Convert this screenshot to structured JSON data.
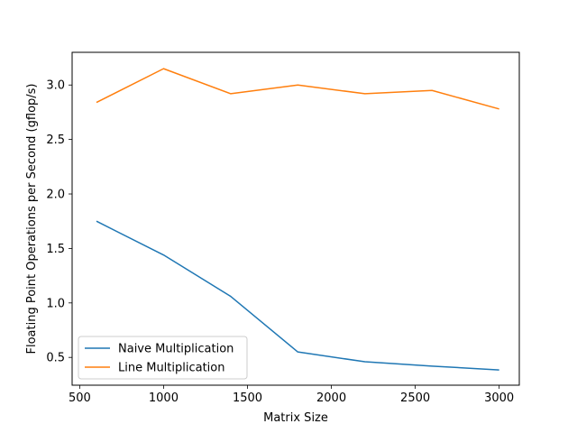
{
  "chart_data": {
    "type": "line",
    "title": "",
    "xlabel": "Matrix Size",
    "ylabel": "Floating Point Operations per Second (gflop/s)",
    "xlim": [
      455,
      3120
    ],
    "ylim": [
      0.245,
      3.3
    ],
    "xticks": [
      500,
      1000,
      1500,
      2000,
      2500,
      3000
    ],
    "yticks": [
      0.5,
      1.0,
      1.5,
      2.0,
      2.5,
      3.0
    ],
    "xtick_labels": [
      "500",
      "1000",
      "1500",
      "2000",
      "2500",
      "3000"
    ],
    "ytick_labels": [
      "0.5",
      "1.0",
      "1.5",
      "2.0",
      "2.5",
      "3.0"
    ],
    "grid": false,
    "legend_position": "lower-left",
    "x": [
      600,
      1000,
      1400,
      1800,
      2200,
      2600,
      3000
    ],
    "series": [
      {
        "name": "Naive Multiplication",
        "color": "#1f77b4",
        "values": [
          1.75,
          1.44,
          1.06,
          0.55,
          0.46,
          0.42,
          0.385
        ]
      },
      {
        "name": "Line Multiplication",
        "color": "#ff7f0e",
        "values": [
          2.84,
          3.15,
          2.92,
          3.0,
          2.92,
          2.95,
          2.78
        ]
      }
    ]
  }
}
